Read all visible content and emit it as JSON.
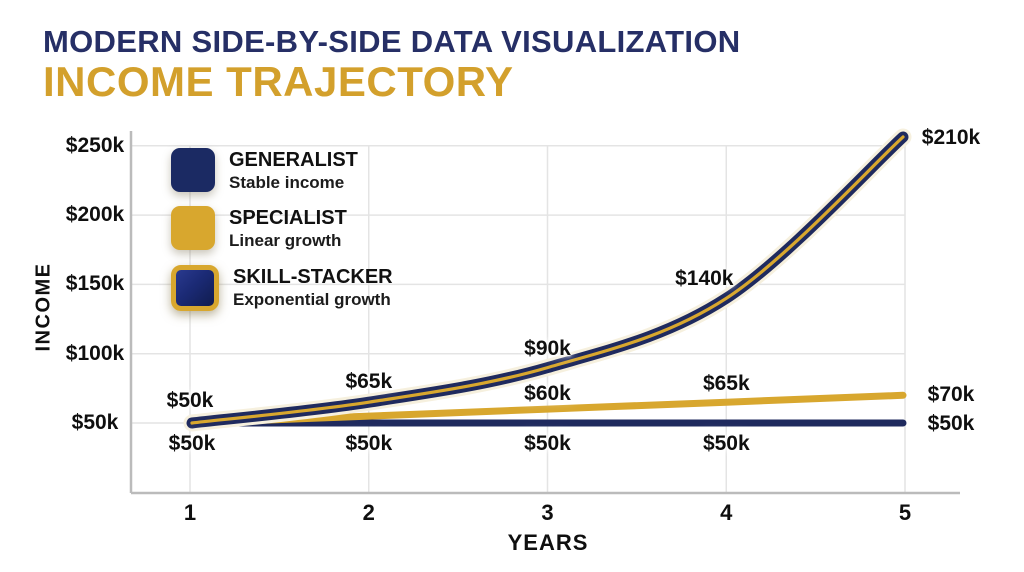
{
  "header": {
    "title": "MODERN SIDE-BY-SIDE DATA VISUALIZATION",
    "subtitle": "INCOME TRAJECTORY"
  },
  "legend": [
    {
      "name": "GENERALIST",
      "desc": "Stable income",
      "swatch": "navy"
    },
    {
      "name": "SPECIALIST",
      "desc": "Linear growth",
      "swatch": "gold"
    },
    {
      "name": "SKILL-STACKER",
      "desc": "Exponential growth",
      "swatch": "navy-gold-border"
    }
  ],
  "axes": {
    "x_label": "YEARS",
    "y_label": "INCOME",
    "x_ticks": [
      "1",
      "2",
      "3",
      "4",
      "5"
    ],
    "y_ticks": [
      "$50k",
      "$100k",
      "$150k",
      "$200k",
      "$250k"
    ],
    "y_tick_values_k": [
      50,
      100,
      150,
      200,
      250
    ]
  },
  "colors": {
    "navy": "#1F2A5E",
    "gold": "#D8A72E",
    "title_navy": "#262F66",
    "title_gold": "#D3A02C",
    "grid": "#E4E4E4",
    "axis_spine": "#BBBBBB",
    "label_text": "#0F0F0F",
    "skill_halo": "#F6F0DE"
  },
  "chart_data": {
    "type": "line",
    "title": "INCOME TRAJECTORY",
    "xlabel": "YEARS",
    "ylabel": "INCOME",
    "x": [
      1,
      2,
      3,
      4,
      5
    ],
    "ylim_k": [
      0,
      250
    ],
    "grid": true,
    "legend_position": "top-left",
    "series": [
      {
        "name": "GENERALIST",
        "desc": "Stable income",
        "style": "navy",
        "values_k": [
          50,
          50,
          50,
          50,
          50
        ],
        "point_labels": [
          "$50k",
          "$50k",
          "$50k",
          "$50k",
          "$50k"
        ]
      },
      {
        "name": "SPECIALIST",
        "desc": "Linear growth",
        "style": "gold",
        "values_k": [
          50,
          55,
          60,
          65,
          70
        ],
        "point_labels": [
          null,
          null,
          "$60k",
          "$65k",
          "$70k"
        ]
      },
      {
        "name": "SKILL-STACKER",
        "desc": "Exponential growth",
        "style": "navy-gold-core",
        "values_k": [
          50,
          65,
          90,
          140,
          210
        ],
        "point_labels": [
          "$50k",
          "$65k",
          "$90k",
          "$140k",
          "$210k"
        ]
      }
    ]
  }
}
